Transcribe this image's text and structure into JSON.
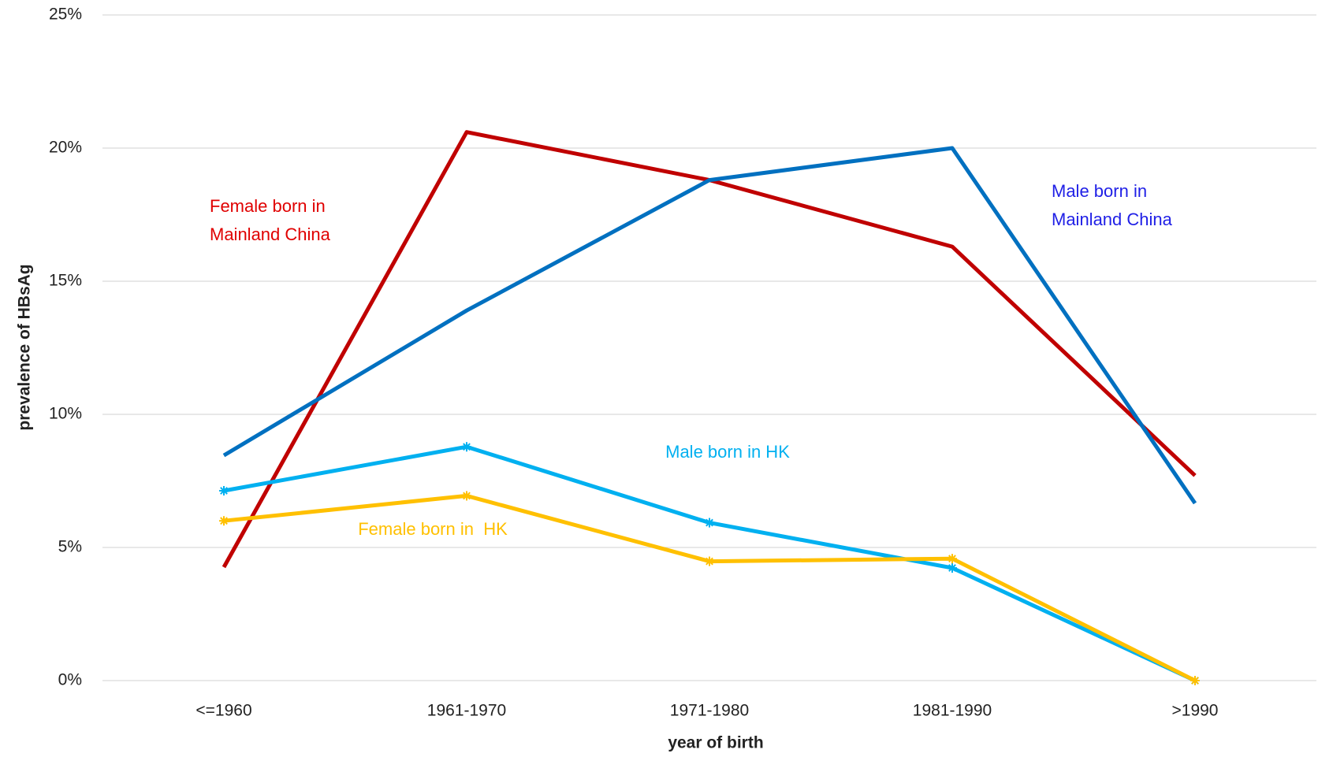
{
  "chart_data": {
    "type": "line",
    "x_label": "year of birth",
    "y_label": "prevalence of HBsAg",
    "categories": [
      "<=1960",
      "1961-1970",
      "1971-1980",
      "1981-1990",
      ">1990"
    ],
    "ylim": [
      0,
      25
    ],
    "yticks": [
      {
        "value": 0,
        "label": "0%"
      },
      {
        "value": 5,
        "label": "5%"
      },
      {
        "value": 10,
        "label": "10%"
      },
      {
        "value": 15,
        "label": "15%"
      },
      {
        "value": 20,
        "label": "20%"
      },
      {
        "value": 25,
        "label": "25%"
      }
    ],
    "grid": true,
    "series": [
      {
        "name": "Female born in Mainland China",
        "color": "#c00000",
        "label_color": "#e00000",
        "marker": "none",
        "values": [
          4.26,
          20.6,
          18.8,
          16.3,
          7.7
        ]
      },
      {
        "name": "Male born in Mainland China",
        "color": "#0070c0",
        "label_color": "#1f1fe6",
        "marker": "none",
        "values": [
          8.46,
          13.9,
          18.8,
          20.0,
          6.66
        ]
      },
      {
        "name": "Male born in HK",
        "color": "#00b0f0",
        "label_color": "#00b0f0",
        "marker": "asterisk",
        "values": [
          7.13,
          8.78,
          5.93,
          4.23,
          0
        ]
      },
      {
        "name": "Female born in  HK",
        "color": "#ffc000",
        "label_color": "#ffc000",
        "marker": "asterisk",
        "values": [
          6.0,
          6.94,
          4.48,
          4.58,
          0
        ]
      }
    ]
  }
}
